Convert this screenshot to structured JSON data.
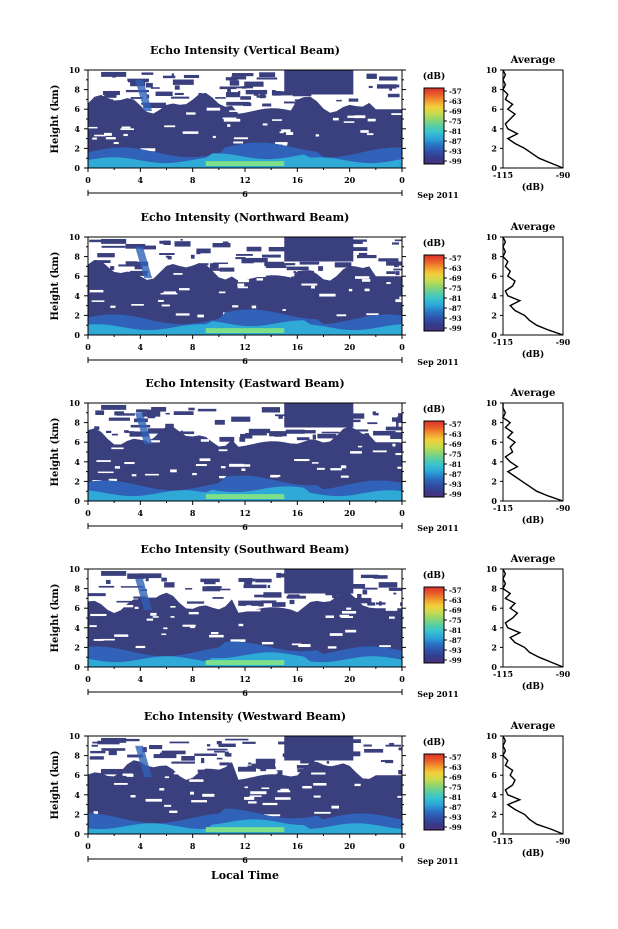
{
  "figure": {
    "xlabel": "Local Time",
    "time_ticks": [
      "0",
      "4",
      "8",
      "12",
      "16",
      "20",
      "0"
    ],
    "date_day": "6",
    "date_label": "Sep 2011",
    "height_ticks": [
      "0",
      "2",
      "4",
      "6",
      "8",
      "10"
    ],
    "ylabel": "Height (km)",
    "colorbar_unit": "(dB)",
    "colorbar_ticks": [
      "-57",
      "-63",
      "-69",
      "-75",
      "-81",
      "-87",
      "-93",
      "-99"
    ],
    "colorbar_colors": [
      "#4b2f7b",
      "#353b8c",
      "#2f52a8",
      "#2a74c4",
      "#2da3d8",
      "#37c2d0",
      "#59cea4",
      "#8fd56f",
      "#c9dc4f",
      "#f2cf3a",
      "#f19a2e",
      "#ea5b2a",
      "#d9312b"
    ],
    "plot_colors": {
      "low": "#3a3f7e",
      "mid": "#2f62b8",
      "high": "#2fa9d6",
      "peak": "#7fe08a"
    },
    "avg_title": "Average",
    "avg_xticks": [
      "-115",
      "-90"
    ],
    "avg_xlabel": "(dB)",
    "avg_yticks": [
      "0",
      "2",
      "4",
      "6",
      "8",
      "10"
    ]
  },
  "chart_data": [
    {
      "type": "heatmap",
      "title": "Echo Intensity (Vertical Beam)",
      "xlabel": "Local Time",
      "ylabel": "Height (km)",
      "xlim": [
        0,
        24
      ],
      "ylim": [
        0,
        10
      ],
      "colorbar": {
        "label": "(dB)",
        "ticks": [
          -57,
          -63,
          -69,
          -75,
          -81,
          -87,
          -93,
          -99
        ]
      },
      "average_profile": {
        "title": "Average",
        "xlabel": "(dB)",
        "xlim": [
          -115,
          -90
        ],
        "ylim": [
          0,
          10
        ],
        "height": [
          0,
          0.5,
          1,
          1.5,
          2,
          2.5,
          3,
          3.5,
          4,
          4.5,
          5,
          5.5,
          6,
          6.5,
          7,
          7.5,
          8,
          8.5,
          9,
          9.5,
          10
        ],
        "value": [
          -90,
          -95,
          -100,
          -103,
          -106,
          -110,
          -113,
          -109,
          -113,
          -114,
          -112,
          -110,
          -113,
          -111,
          -114,
          -113,
          -115,
          -114,
          -115,
          -114,
          -115
        ]
      }
    },
    {
      "type": "heatmap",
      "title": "Echo Intensity (Northward Beam)",
      "xlabel": "Local Time",
      "ylabel": "Height (km)",
      "xlim": [
        0,
        24
      ],
      "ylim": [
        0,
        10
      ],
      "colorbar": {
        "label": "(dB)",
        "ticks": [
          -57,
          -63,
          -69,
          -75,
          -81,
          -87,
          -93,
          -99
        ]
      },
      "average_profile": {
        "title": "Average",
        "xlabel": "(dB)",
        "xlim": [
          -115,
          -90
        ],
        "ylim": [
          0,
          10
        ],
        "height": [
          0,
          0.5,
          1,
          1.5,
          2,
          2.5,
          3,
          3.5,
          4,
          4.5,
          5,
          5.5,
          6,
          6.5,
          7,
          7.5,
          8,
          8.5,
          9,
          9.5,
          10
        ],
        "value": [
          -90,
          -96,
          -101,
          -104,
          -106,
          -110,
          -112,
          -108,
          -113,
          -114,
          -111,
          -110,
          -113,
          -112,
          -114,
          -113,
          -115,
          -114,
          -115,
          -114,
          -115
        ]
      }
    },
    {
      "type": "heatmap",
      "title": "Echo Intensity (Eastward Beam)",
      "xlabel": "Local Time",
      "ylabel": "Height (km)",
      "xlim": [
        0,
        24
      ],
      "ylim": [
        0,
        10
      ],
      "colorbar": {
        "label": "(dB)",
        "ticks": [
          -57,
          -63,
          -69,
          -75,
          -81,
          -87,
          -93,
          -99
        ]
      },
      "average_profile": {
        "title": "Average",
        "xlabel": "(dB)",
        "xlim": [
          -115,
          -90
        ],
        "ylim": [
          0,
          10
        ],
        "height": [
          0,
          0.5,
          1,
          1.5,
          2,
          2.5,
          3,
          3.5,
          4,
          4.5,
          5,
          5.5,
          6,
          6.5,
          7,
          7.5,
          8,
          8.5,
          9,
          9.5,
          10
        ],
        "value": [
          -90,
          -96,
          -101,
          -104,
          -107,
          -110,
          -113,
          -109,
          -112,
          -114,
          -111,
          -112,
          -110,
          -113,
          -111,
          -114,
          -112,
          -115,
          -114,
          -115,
          -115
        ]
      }
    },
    {
      "type": "heatmap",
      "title": "Echo Intensity (Southward Beam)",
      "xlabel": "Local Time",
      "ylabel": "Height (km)",
      "xlim": [
        0,
        24
      ],
      "ylim": [
        0,
        10
      ],
      "colorbar": {
        "label": "(dB)",
        "ticks": [
          -57,
          -63,
          -69,
          -75,
          -81,
          -87,
          -93,
          -99
        ]
      },
      "average_profile": {
        "title": "Average",
        "xlabel": "(dB)",
        "xlim": [
          -115,
          -90
        ],
        "ylim": [
          0,
          10
        ],
        "height": [
          0,
          0.5,
          1,
          1.5,
          2,
          2.5,
          3,
          3.5,
          4,
          4.5,
          5,
          5.5,
          6,
          6.5,
          7,
          7.5,
          8,
          8.5,
          9,
          9.5,
          10
        ],
        "value": [
          -90,
          -95,
          -100,
          -104,
          -106,
          -110,
          -112,
          -108,
          -113,
          -114,
          -111,
          -109,
          -112,
          -110,
          -114,
          -112,
          -115,
          -114,
          -115,
          -114,
          -115
        ]
      }
    },
    {
      "type": "heatmap",
      "title": "Echo Intensity (Westward Beam)",
      "xlabel": "Local Time",
      "ylabel": "Height (km)",
      "xlim": [
        0,
        24
      ],
      "ylim": [
        0,
        10
      ],
      "colorbar": {
        "label": "(dB)",
        "ticks": [
          -57,
          -63,
          -69,
          -75,
          -81,
          -87,
          -93,
          -99
        ]
      },
      "average_profile": {
        "title": "Average",
        "xlabel": "(dB)",
        "xlim": [
          -115,
          -90
        ],
        "ylim": [
          0,
          10
        ],
        "height": [
          0,
          0.5,
          1,
          1.5,
          2,
          2.5,
          3,
          3.5,
          4,
          4.5,
          5,
          5.5,
          6,
          6.5,
          7,
          7.5,
          8,
          8.5,
          9,
          9.5,
          10
        ],
        "value": [
          -90,
          -95,
          -101,
          -104,
          -106,
          -110,
          -113,
          -108,
          -113,
          -114,
          -111,
          -110,
          -112,
          -111,
          -114,
          -113,
          -115,
          -114,
          -115,
          -114,
          -115
        ]
      }
    }
  ]
}
